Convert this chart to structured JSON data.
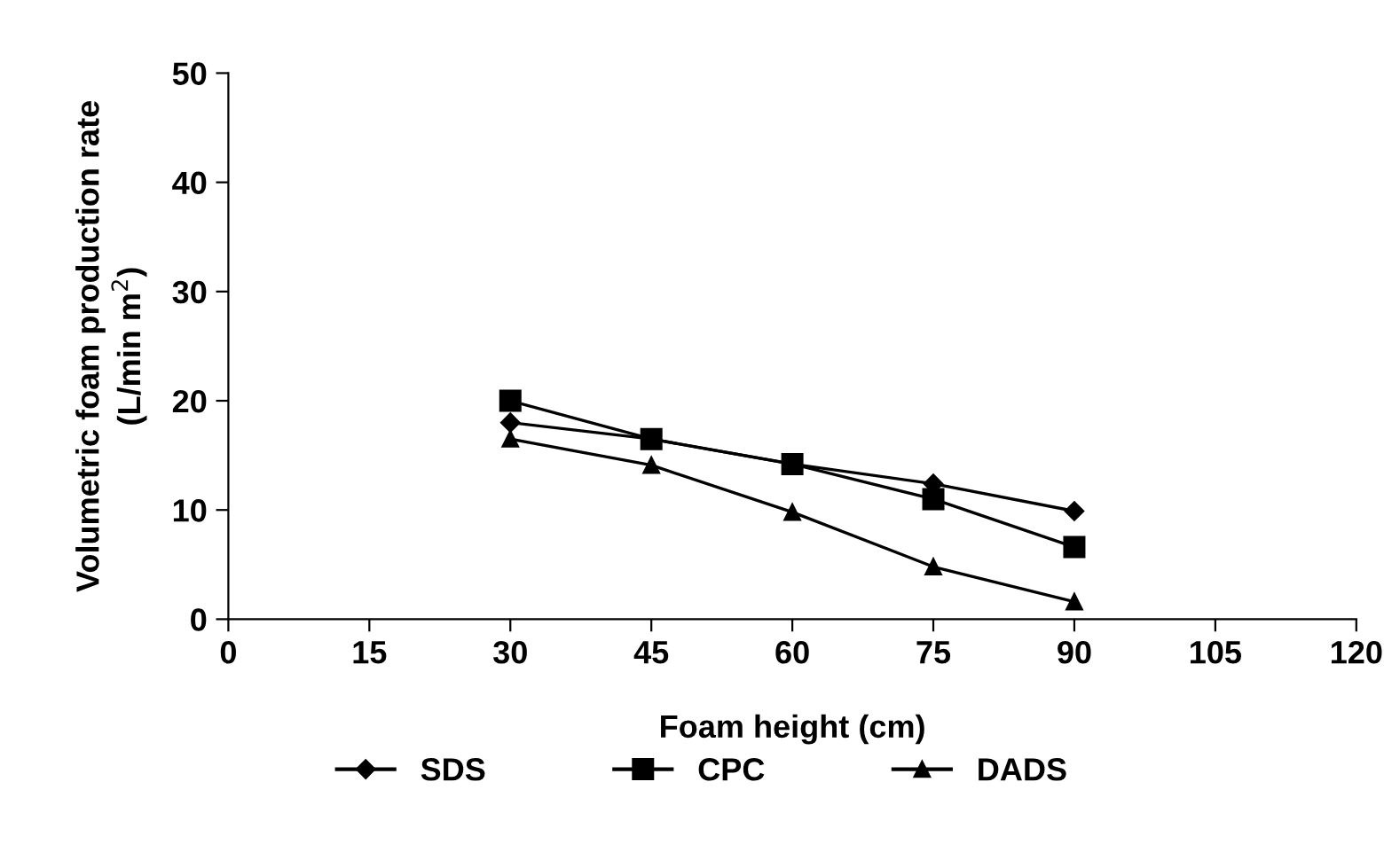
{
  "chart_data": {
    "type": "line",
    "xlabel": "Foam height (cm)",
    "ylabel": "Volumetric foam production rate\n(L/min m$^{2}$)",
    "x": [
      30,
      45,
      60,
      75,
      90
    ],
    "series": [
      {
        "name": "SDS",
        "color": "#000000",
        "marker": "diamond",
        "values": [
          18,
          16.5,
          14.2,
          12.4,
          9.9
        ]
      },
      {
        "name": "CPC",
        "color": "#000000",
        "marker": "square",
        "values": [
          20,
          16.5,
          14.2,
          11,
          6.6
        ]
      },
      {
        "name": "DADS",
        "color": "#000000",
        "marker": "triangle",
        "values": [
          16.5,
          14.1,
          9.8,
          4.8,
          1.6
        ]
      }
    ],
    "xlim": [
      0,
      120
    ],
    "xticks": [
      0,
      15,
      30,
      45,
      60,
      75,
      90,
      105,
      120
    ],
    "ylim": [
      0,
      50
    ],
    "yticks": [
      0,
      10,
      20,
      30,
      40,
      50
    ],
    "grid": false,
    "legend": "bottom",
    "line_style": "solid"
  }
}
